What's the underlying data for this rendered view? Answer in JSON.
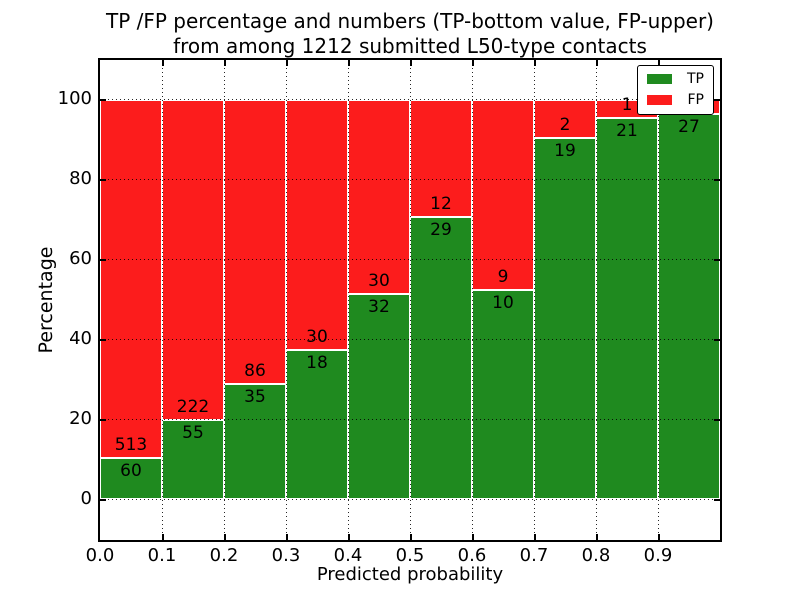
{
  "title": {
    "line1": "TP /FP percentage and numbers (TP-bottom value, FP-upper)",
    "line2": "from among 1212 submitted L50-type contacts"
  },
  "axes": {
    "ylabel": "Percentage",
    "xlabel": "Predicted probability",
    "ytick_labels": [
      "0",
      "20",
      "40",
      "60",
      "80",
      "100"
    ],
    "ytick_values": [
      0,
      20,
      40,
      60,
      80,
      100
    ],
    "xtick_labels": [
      "0.0",
      "0.1",
      "0.2",
      "0.3",
      "0.4",
      "0.5",
      "0.6",
      "0.7",
      "0.8",
      "0.9"
    ],
    "xtick_values": [
      0,
      0.1,
      0.2,
      0.3,
      0.4,
      0.5,
      0.6,
      0.7,
      0.8,
      0.9
    ]
  },
  "legend": {
    "entries": [
      {
        "label": "TP",
        "color": "#1f8a1f"
      },
      {
        "label": "FP",
        "color": "#fc1c1c"
      }
    ]
  },
  "colors": {
    "tp": "#1f8a1f",
    "fp": "#fc1c1c",
    "grid": "#000000",
    "spine": "#000000",
    "background": "#ffffff",
    "text": "#000000"
  },
  "chart_data": {
    "type": "bar",
    "stacked": true,
    "normalized_to_percent": true,
    "title": "TP /FP percentage and numbers (TP-bottom value, FP-upper) from among 1212 submitted L50-type contacts",
    "xlabel": "Predicted probability",
    "ylabel": "Percentage",
    "xlim": [
      0,
      1
    ],
    "ylim": [
      -10,
      110
    ],
    "grid": "dotted",
    "legend_position": "upper-right",
    "total_contacts": 1212,
    "bin_width": 0.1,
    "bin_starts": [
      0.0,
      0.1,
      0.2,
      0.3,
      0.4,
      0.5,
      0.6,
      0.7,
      0.8,
      0.9
    ],
    "categories": [
      "0.0-0.1",
      "0.1-0.2",
      "0.2-0.3",
      "0.3-0.4",
      "0.4-0.5",
      "0.5-0.6",
      "0.6-0.7",
      "0.7-0.8",
      "0.8-0.9",
      "0.9-1.0"
    ],
    "series": [
      {
        "name": "TP",
        "counts": [
          60,
          55,
          35,
          18,
          32,
          29,
          10,
          19,
          21,
          27
        ],
        "pct": [
          10.5,
          19.9,
          28.9,
          37.5,
          51.6,
          70.7,
          52.6,
          90.5,
          95.5,
          96.4
        ]
      },
      {
        "name": "FP",
        "counts": [
          513,
          222,
          86,
          30,
          30,
          12,
          9,
          2,
          1,
          1
        ],
        "pct": [
          89.5,
          80.1,
          71.1,
          62.5,
          48.4,
          29.3,
          47.4,
          9.5,
          4.5,
          3.6
        ]
      }
    ],
    "bar_value_labels": {
      "tp": [
        "60",
        "55",
        "35",
        "18",
        "32",
        "29",
        "10",
        "19",
        "21",
        "27"
      ],
      "fp": [
        "513",
        "222",
        "86",
        "30",
        "30",
        "12",
        "9",
        "2",
        "1",
        ""
      ]
    }
  }
}
